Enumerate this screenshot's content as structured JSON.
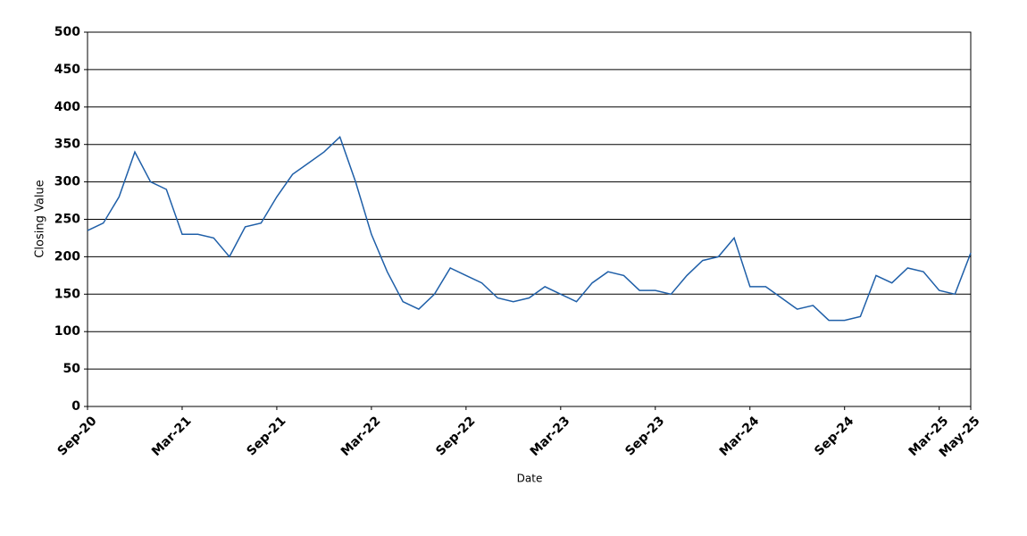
{
  "chart_data": {
    "type": "line",
    "x_label": "Date",
    "y_label": "Closing Value",
    "categories": [
      "Sep-20",
      "Oct-20",
      "Nov-20",
      "Dec-20",
      "Jan-21",
      "Feb-21",
      "Mar-21",
      "Apr-21",
      "May-21",
      "Jun-21",
      "Jul-21",
      "Aug-21",
      "Sep-21",
      "Oct-21",
      "Nov-21",
      "Dec-21",
      "Jan-22",
      "Feb-22",
      "Mar-22",
      "Apr-22",
      "May-22",
      "Jun-22",
      "Jul-22",
      "Aug-22",
      "Sep-22",
      "Oct-22",
      "Nov-22",
      "Dec-22",
      "Jan-23",
      "Feb-23",
      "Mar-23",
      "Apr-23",
      "May-23",
      "Jun-23",
      "Jul-23",
      "Aug-23",
      "Sep-23",
      "Oct-23",
      "Nov-23",
      "Dec-23",
      "Jan-24",
      "Feb-24",
      "Mar-24",
      "Apr-24",
      "May-24",
      "Jun-24",
      "Jul-24",
      "Aug-24",
      "Sep-24",
      "Oct-24",
      "Nov-24",
      "Dec-24",
      "Jan-25",
      "Feb-25",
      "Mar-25",
      "Apr-25",
      "May-25"
    ],
    "series": [
      {
        "name": "Closing Value",
        "color": "#1f5fa8",
        "values": [
          235,
          245,
          280,
          340,
          300,
          290,
          230,
          230,
          225,
          200,
          240,
          245,
          280,
          310,
          325,
          340,
          360,
          300,
          230,
          180,
          140,
          130,
          150,
          185,
          175,
          165,
          145,
          140,
          145,
          160,
          150,
          140,
          165,
          180,
          175,
          155,
          155,
          150,
          175,
          195,
          200,
          225,
          160,
          160,
          145,
          130,
          135,
          115,
          115,
          120,
          175,
          165,
          185,
          180,
          155,
          150,
          205
        ]
      }
    ],
    "xticks": [
      "Sep-20",
      "Mar-21",
      "Sep-21",
      "Mar-22",
      "Sep-22",
      "Mar-23",
      "Sep-23",
      "Mar-24",
      "Sep-24",
      "Mar-25",
      "May-25"
    ],
    "ylim": [
      0,
      500
    ],
    "yticks": [
      0,
      50,
      100,
      150,
      200,
      250,
      300,
      350,
      400,
      450,
      500
    ],
    "grid": true
  }
}
